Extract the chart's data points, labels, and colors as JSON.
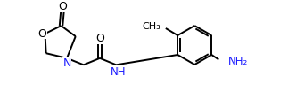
{
  "figure_width": 3.32,
  "figure_height": 1.13,
  "dpi": 100,
  "background_color": "#ffffff",
  "line_color": "#000000",
  "line_width": 1.4,
  "font_size": 8.5,
  "xlim": [
    0.0,
    10.0
  ],
  "ylim": [
    -0.5,
    3.5
  ]
}
